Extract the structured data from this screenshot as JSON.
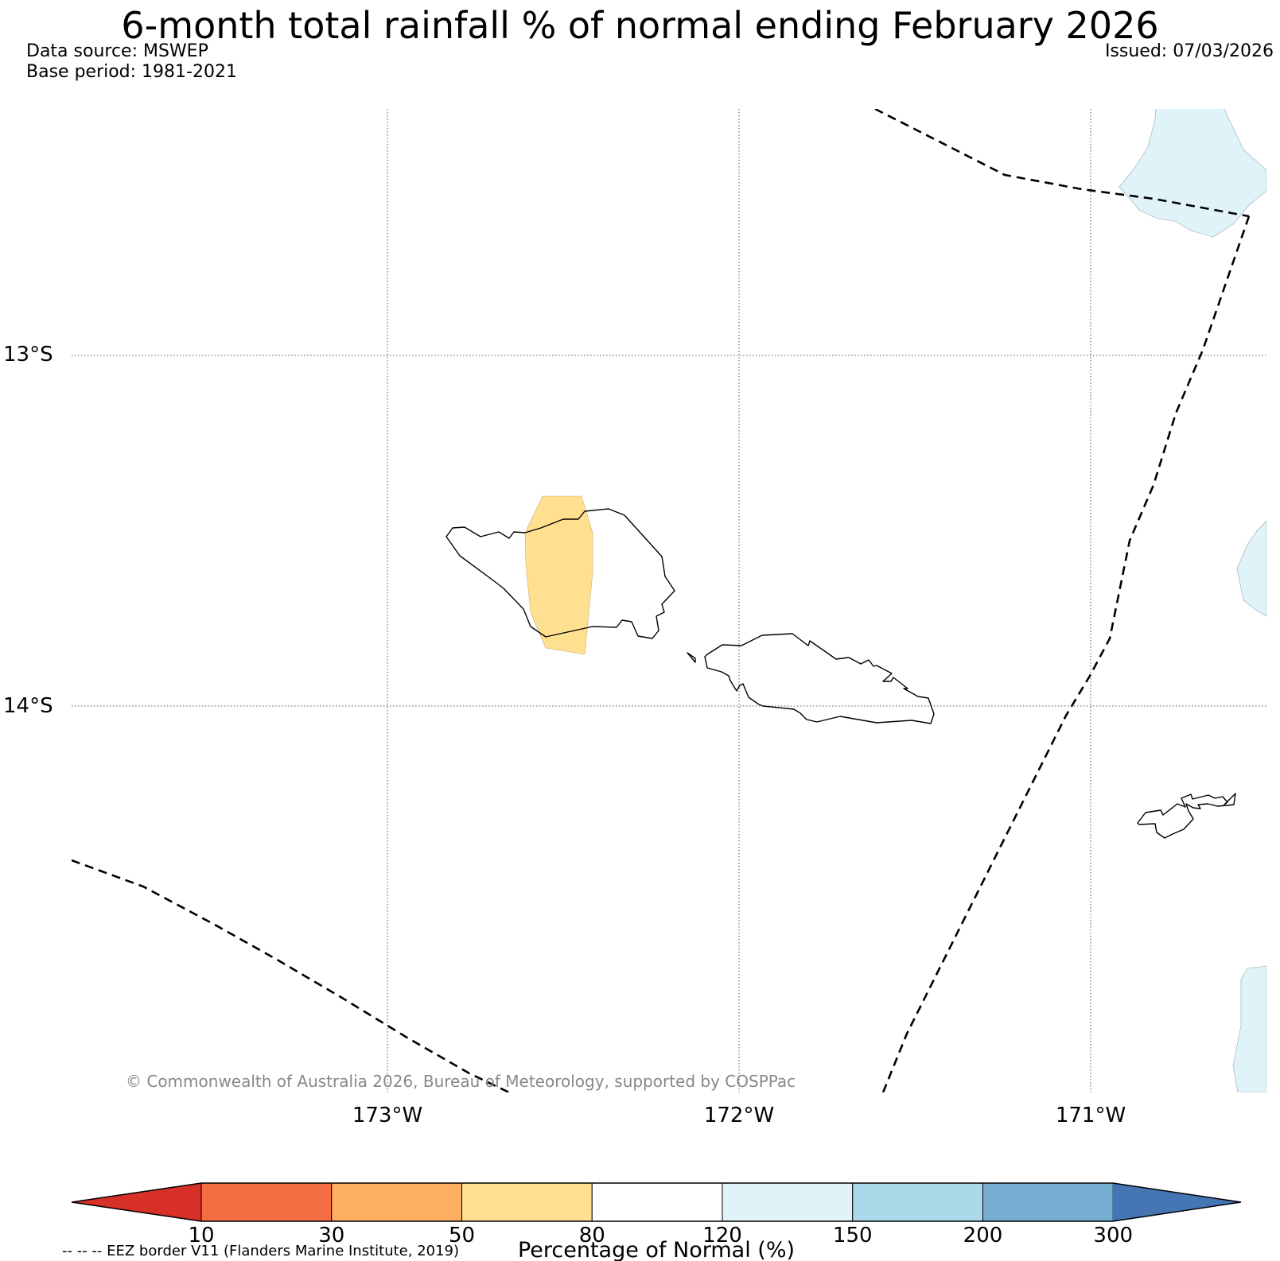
{
  "title": "6-month total rainfall % of normal ending February 2026",
  "data_source": "Data source: MSWEP",
  "base_period": "Base period: 1981-2021",
  "issued": "Issued: 07/03/2026",
  "map": {
    "lat_labels": [
      "13°S",
      "14°S"
    ],
    "lon_labels": [
      "173°W",
      "172°W",
      "171°W"
    ],
    "copyright": "© Commonwealth of Australia 2026, Bureau of Meteorology, supported by COSPPac"
  },
  "colorbar": {
    "title": "Percentage of Normal (%)",
    "tick_labels": [
      "10",
      "30",
      "50",
      "80",
      "120",
      "150",
      "200",
      "300"
    ],
    "colors": [
      "#d73027",
      "#f46d43",
      "#fdae61",
      "#fee090",
      "#ffffff",
      "#e0f3f8",
      "#abd9e9",
      "#74add1",
      "#4575b4"
    ]
  },
  "legend_note": "-- -- -- EEZ border V11 (Flanders Marine Institute, 2019)",
  "colors": {
    "dry_fill": "#fee090",
    "wet_fill": "#e0f3f8"
  }
}
